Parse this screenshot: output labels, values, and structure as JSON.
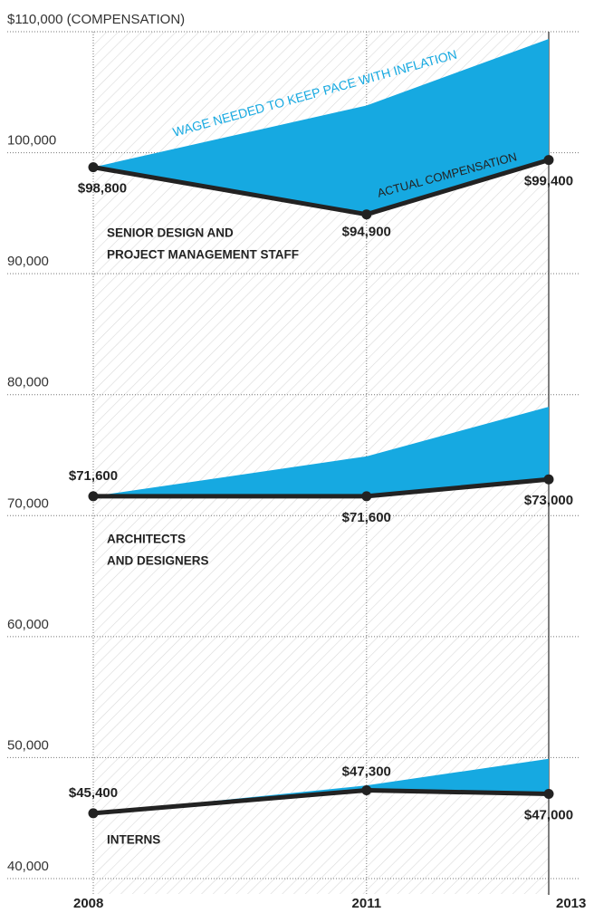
{
  "chart_data": {
    "type": "area_line",
    "x": [
      2008,
      2011,
      2013
    ],
    "xlim": [
      2008,
      2013
    ],
    "xticks": [
      2008,
      2011,
      2013
    ],
    "ylim": [
      40000,
      110000
    ],
    "yticks": [
      {
        "value": 110000,
        "label": "$110,000 (COMPENSATION)"
      },
      {
        "value": 100000,
        "label": "100,000"
      },
      {
        "value": 90000,
        "label": "90,000"
      },
      {
        "value": 80000,
        "label": "80,000"
      },
      {
        "value": 70000,
        "label": "70,000"
      },
      {
        "value": 60000,
        "label": "60,000"
      },
      {
        "value": 50000,
        "label": "50,000"
      },
      {
        "value": 40000,
        "label": "40,000"
      }
    ],
    "grid": true,
    "line_color": "#222222",
    "area_color": "#16a9e1",
    "annotations": [
      "WAGE NEEDED TO KEEP PACE WITH INFLATION",
      "ACTUAL COMPENSATION"
    ],
    "series": [
      {
        "name": [
          "SENIOR DESIGN AND",
          "PROJECT MANAGEMENT STAFF"
        ],
        "values": [
          98800,
          94900,
          99400
        ],
        "value_labels": [
          "$98,800",
          "$94,900",
          "$99,400"
        ],
        "inflation_values": [
          98800,
          103900,
          109400
        ]
      },
      {
        "name": [
          "ARCHITECTS",
          "AND DESIGNERS"
        ],
        "values": [
          71600,
          71600,
          73000
        ],
        "value_labels": [
          "$71,600",
          "$71,600",
          "$73,000"
        ],
        "inflation_values": [
          71600,
          74900,
          79000
        ]
      },
      {
        "name": [
          "INTERNS"
        ],
        "values": [
          45400,
          47300,
          47000
        ],
        "value_labels": [
          "$45,400",
          "$47,300",
          "$47,000"
        ],
        "inflation_values": [
          45400,
          47700,
          49900
        ]
      }
    ]
  }
}
